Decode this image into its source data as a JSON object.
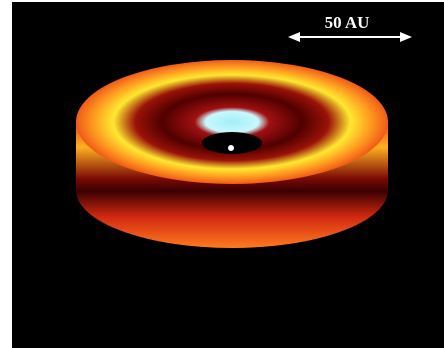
{
  "scale_bar": {
    "label": "50 AU"
  }
}
